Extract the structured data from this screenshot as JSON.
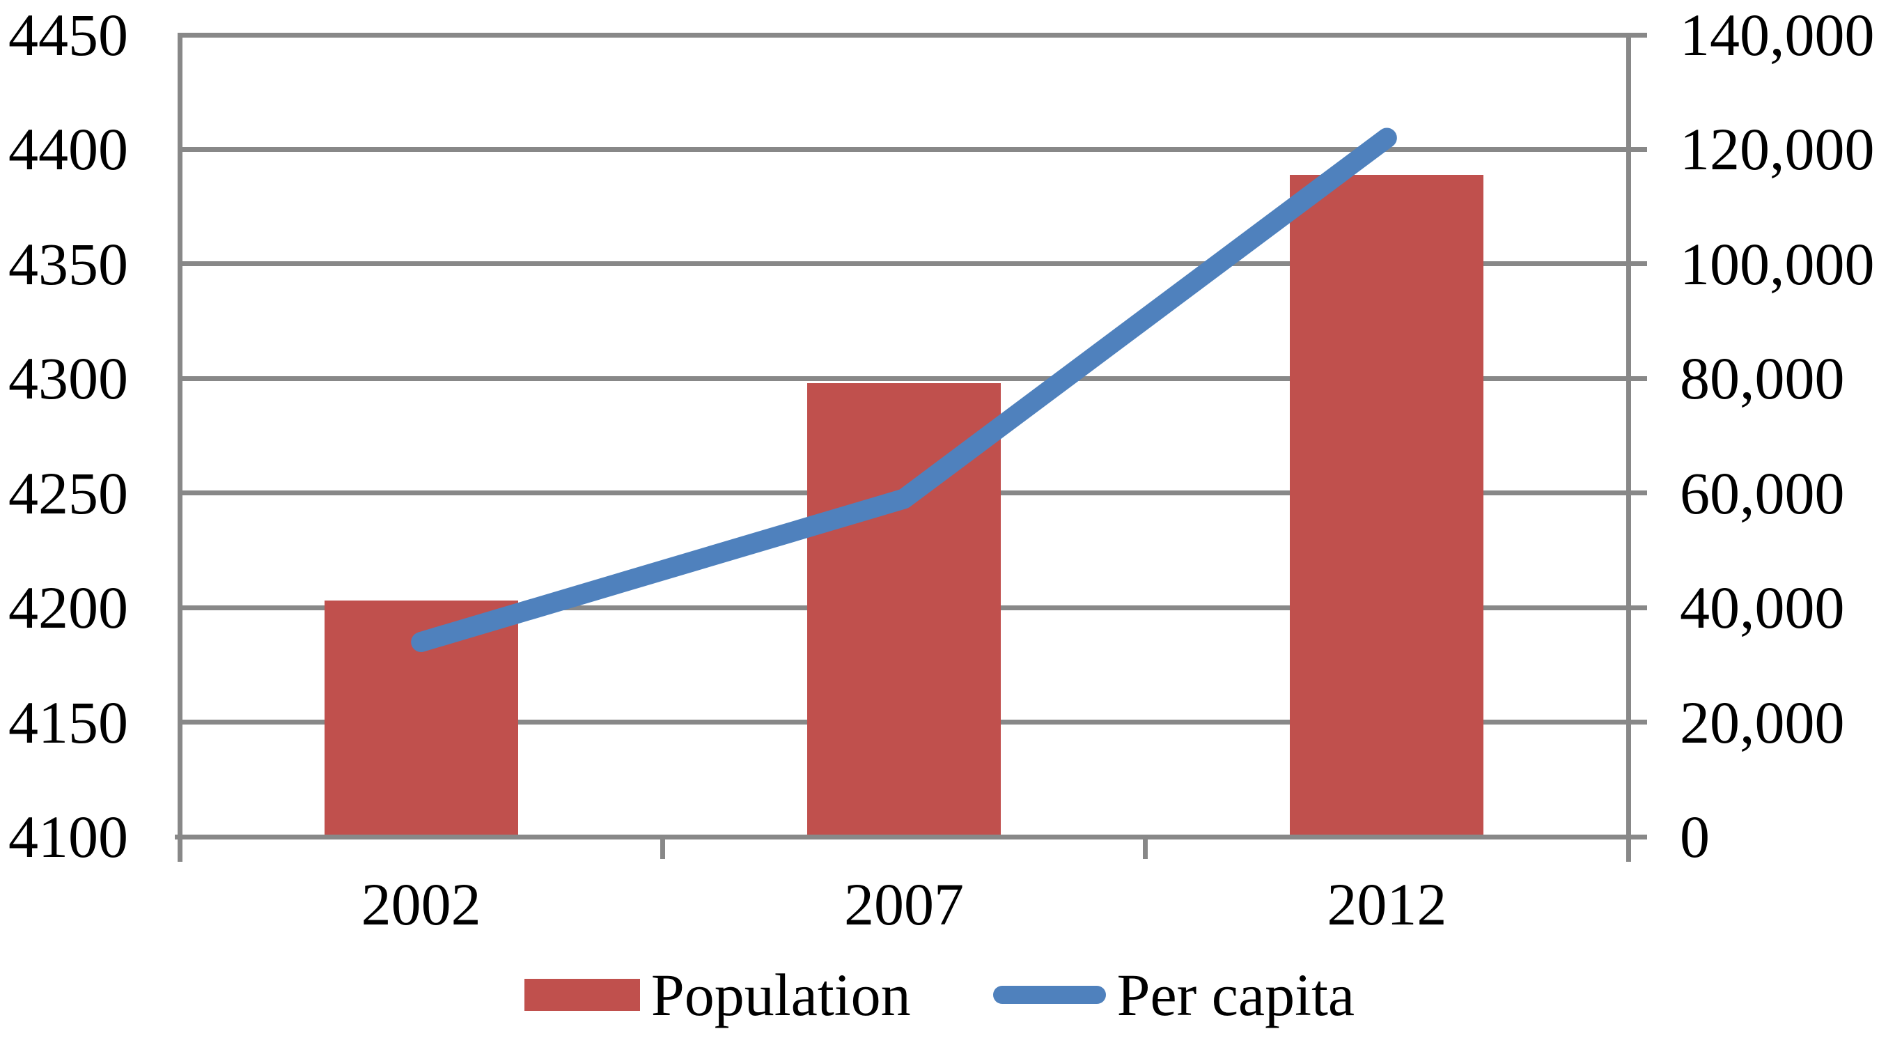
{
  "chart_data": {
    "type": "bar+line",
    "title": "",
    "xlabel": "",
    "ylabel": "",
    "categories": [
      "2002",
      "2007",
      "2012"
    ],
    "series": [
      {
        "name": "Population",
        "type": "bar",
        "axis": "left",
        "color": "#C0504D",
        "values": [
          4203,
          4298,
          4389
        ]
      },
      {
        "name": "Per capita",
        "type": "line",
        "axis": "right",
        "color": "#4F81BD",
        "values": [
          34000,
          59000,
          122000
        ]
      }
    ],
    "left_axis": {
      "min": 4100,
      "max": 4450,
      "step": 50,
      "tick_labels": [
        "4450",
        "4400",
        "4350",
        "4300",
        "4250",
        "4200",
        "4150",
        "4100"
      ]
    },
    "right_axis": {
      "min": 0,
      "max": 140000,
      "step": 20000,
      "tick_labels": [
        "140,000",
        "120,000",
        "100,000",
        "80,000",
        "60,000",
        "40,000",
        "20,000",
        "0"
      ]
    },
    "grid": true,
    "legend_position": "bottom"
  },
  "colors": {
    "grid": "#888888",
    "text": "#000000",
    "background": "#FFFFFF"
  }
}
